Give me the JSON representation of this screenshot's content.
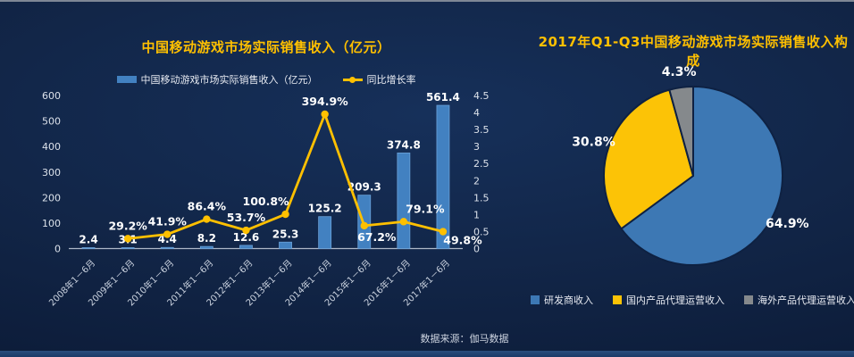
{
  "chart_data": [
    {
      "type": "bar+line",
      "title": "中国移动游戏市场实际销售收入（亿元）",
      "categories": [
        "2008年1－6月",
        "2009年1－6月",
        "2010年1－6月",
        "2011年1－6月",
        "2012年1－6月",
        "2013年1－6月",
        "2014年1－6月",
        "2015年1－6月",
        "2016年1－6月",
        "2017年1－6月"
      ],
      "series": [
        {
          "name": "中国移动游戏市场实际销售收入（亿元）",
          "type": "bar",
          "color": "#4281c1",
          "values": [
            2.4,
            3.1,
            4.4,
            8.2,
            12.6,
            25.3,
            125.2,
            209.3,
            374.8,
            561.4
          ],
          "labels": [
            "2.4",
            "3.1",
            "4.4",
            "8.2",
            "12.6",
            "25.3",
            "125.2",
            "209.3",
            "374.8",
            "561.4"
          ]
        },
        {
          "name": "同比增长率",
          "type": "line",
          "color": "#ffc000",
          "values": [
            null,
            29.2,
            41.9,
            86.4,
            53.7,
            100.8,
            394.9,
            67.2,
            79.1,
            49.8
          ],
          "labels": [
            null,
            "29.2%",
            "41.9%",
            "86.4%",
            "53.7%",
            "100.8%",
            "394.9%",
            "67.2%",
            "79.1%",
            "49.8%"
          ]
        }
      ],
      "left_axis": {
        "min": 0,
        "max": 600,
        "ticks": [
          "0",
          "100",
          "200",
          "300",
          "400",
          "500",
          "600"
        ]
      },
      "right_axis": {
        "min": 0,
        "max": 4.5,
        "ticks": [
          "0",
          "0.5",
          "1",
          "1.5",
          "2",
          "2.5",
          "3",
          "3.5",
          "4",
          "4.5"
        ]
      },
      "legend_position": "top",
      "grid": false
    },
    {
      "type": "pie",
      "title": "2017年Q1-Q3中国移动游戏市场实际销售收入构成",
      "slices": [
        {
          "label": "研发商收入",
          "value": 64.9,
          "display": "64.9%",
          "color": "#3d78b4"
        },
        {
          "label": "国内产品代理运营收入",
          "value": 30.8,
          "display": "30.8%",
          "color": "#fcc306"
        },
        {
          "label": "海外产品代理运营收入",
          "value": 4.3,
          "display": "4.3%",
          "color": "#85898c"
        }
      ],
      "start_angle_deg": 0,
      "direction": "clockwise",
      "legend_position": "bottom"
    }
  ],
  "footer": {
    "source": "数据来源：伽马数据"
  }
}
